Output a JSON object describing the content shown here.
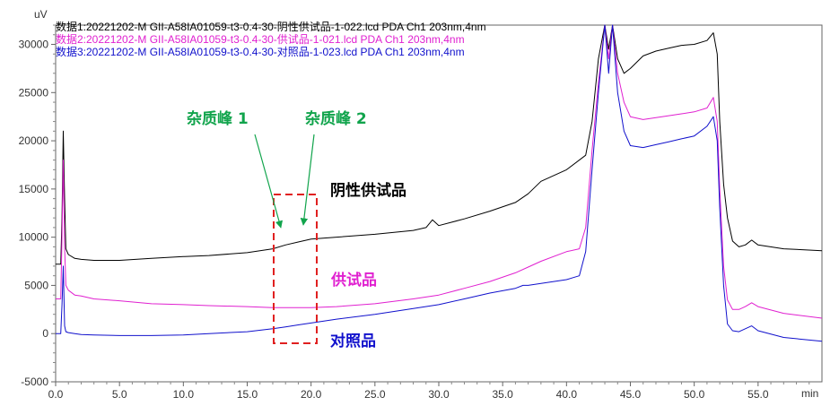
{
  "chart_data": {
    "type": "line",
    "title": "",
    "xlabel": "min",
    "ylabel": "uV",
    "xlim": [
      0,
      60
    ],
    "ylim": [
      -5000,
      32000
    ],
    "x_ticks": [
      0,
      5,
      10,
      15,
      20,
      25,
      30,
      35,
      40,
      45,
      50,
      55
    ],
    "x_tick_labels": [
      "0.0",
      "5.0",
      "10.0",
      "15.0",
      "20.0",
      "25.0",
      "30.0",
      "35.0",
      "40.0",
      "45.0",
      "50.0",
      "55.0"
    ],
    "y_ticks": [
      -5000,
      0,
      5000,
      10000,
      15000,
      20000,
      25000,
      30000
    ],
    "y_tick_labels": [
      "-5000",
      "0",
      "5000",
      "10000",
      "15000",
      "20000",
      "25000",
      "30000"
    ],
    "grid": false,
    "legend_position": "top-left",
    "legend": [
      "数据1:20221202-M GII-A58IA01059-t3-0.4-30-阴性供试品-1-022.lcd PDA Ch1 203nm,4nm",
      "数据2:20221202-M GII-A58IA01059-t3-0.4-30-供试品-1-021.lcd PDA Ch1 203nm,4nm",
      "数据3:20221202-M GII-A58IA01059-t3-0.4-30-对照品-1-023.lcd PDA Ch1 203nm,4nm"
    ],
    "series": [
      {
        "color": "#000000",
        "x": [
          0,
          0.4,
          0.5,
          0.6,
          0.7,
          0.8,
          1.0,
          1.5,
          2.0,
          3.0,
          5.0,
          7.5,
          10.0,
          10.1,
          12.0,
          15.0,
          17.0,
          18.0,
          19.0,
          20.0,
          22.0,
          25.0,
          28.0,
          29.0,
          29.5,
          30.0,
          32.0,
          34.0,
          36.0,
          37.0,
          38.0,
          40.0,
          41.5,
          42.0,
          42.5,
          43.0,
          43.3,
          43.6,
          44.0,
          44.5,
          45.0,
          46.0,
          47.0,
          48.0,
          49.0,
          50.0,
          51.0,
          51.5,
          51.8,
          52.0,
          52.3,
          52.6,
          53.0,
          53.5,
          54.0,
          54.5,
          55.0,
          57.0,
          60.0
        ],
        "y": [
          7200,
          7200,
          12000,
          21000,
          14000,
          8800,
          8200,
          7800,
          7700,
          7600,
          7600,
          7800,
          8000,
          8000,
          8100,
          8400,
          8800,
          9200,
          9500,
          9800,
          10000,
          10300,
          10700,
          11000,
          11800,
          11200,
          11900,
          12700,
          13600,
          14500,
          15800,
          17000,
          18500,
          22000,
          28500,
          32000,
          29500,
          32000,
          28500,
          27000,
          27500,
          28800,
          29300,
          29600,
          29900,
          30000,
          30400,
          31200,
          29000,
          22000,
          15500,
          12000,
          9600,
          9000,
          9200,
          9700,
          9200,
          8800,
          8600
        ]
      },
      {
        "color": "#e020d0",
        "x": [
          0,
          0.4,
          0.5,
          0.6,
          0.7,
          0.8,
          1.0,
          1.5,
          2.0,
          3.0,
          5.0,
          7.5,
          10.0,
          12.0,
          15.0,
          17.0,
          18.0,
          19.0,
          20.0,
          22.0,
          25.0,
          28.0,
          30.0,
          32.0,
          34.0,
          36.0,
          37.0,
          38.0,
          40.0,
          41.0,
          41.5,
          42.0,
          42.5,
          43.0,
          43.3,
          43.6,
          44.0,
          44.5,
          45.0,
          46.0,
          47.0,
          48.0,
          49.0,
          50.0,
          51.0,
          51.5,
          51.8,
          52.0,
          52.3,
          52.6,
          53.0,
          53.5,
          54.0,
          54.5,
          55.0,
          57.0,
          60.0
        ],
        "y": [
          3600,
          3600,
          10000,
          18000,
          9000,
          5000,
          4500,
          4000,
          3900,
          3600,
          3400,
          3100,
          3000,
          2900,
          2800,
          2700,
          2700,
          2700,
          2700,
          2800,
          3100,
          3600,
          4000,
          4700,
          5400,
          6300,
          6900,
          7500,
          8500,
          8800,
          11000,
          19000,
          26000,
          32000,
          28500,
          32000,
          27000,
          24000,
          22500,
          22200,
          22400,
          22600,
          22800,
          23000,
          23400,
          24500,
          22000,
          15000,
          7000,
          3500,
          2500,
          2500,
          2800,
          3200,
          2800,
          2100,
          1600
        ]
      },
      {
        "color": "#1010cc",
        "x": [
          0,
          0.4,
          0.5,
          0.6,
          0.7,
          0.8,
          1.0,
          1.5,
          2.0,
          3.0,
          5.0,
          7.5,
          10.0,
          12.0,
          15.0,
          17.0,
          18.0,
          19.0,
          20.0,
          22.0,
          25.0,
          28.0,
          30.0,
          32.0,
          34.0,
          36.0,
          36.6,
          37.0,
          38.0,
          40.0,
          41.0,
          41.5,
          42.0,
          42.5,
          43.0,
          43.3,
          43.6,
          44.0,
          44.5,
          45.0,
          46.0,
          47.0,
          48.0,
          49.0,
          50.0,
          51.0,
          51.5,
          51.8,
          52.0,
          52.3,
          52.6,
          53.0,
          53.5,
          54.0,
          54.5,
          55.0,
          57.0,
          60.0
        ],
        "y": [
          0,
          0,
          3000,
          7000,
          800,
          200,
          100,
          0,
          -100,
          -150,
          -200,
          -200,
          -150,
          0,
          200,
          500,
          700,
          900,
          1100,
          1500,
          2000,
          2600,
          3000,
          3600,
          4200,
          4700,
          5000,
          5000,
          5200,
          5600,
          6000,
          8500,
          17000,
          25000,
          32000,
          27000,
          32000,
          25000,
          21000,
          19500,
          19300,
          19600,
          19900,
          20200,
          20500,
          21500,
          22500,
          20000,
          13000,
          5000,
          1000,
          300,
          200,
          500,
          800,
          300,
          -400,
          -800
        ]
      }
    ],
    "annotations": [
      {
        "text": "杂质峰 1",
        "color": "#11a44c"
      },
      {
        "text": "杂质峰 2",
        "color": "#11a44c"
      },
      {
        "text": "阴性供试品",
        "color": "#000000"
      },
      {
        "text": "供试品",
        "color": "#e020d0"
      },
      {
        "text": "对照品",
        "color": "#1010cc"
      }
    ]
  }
}
